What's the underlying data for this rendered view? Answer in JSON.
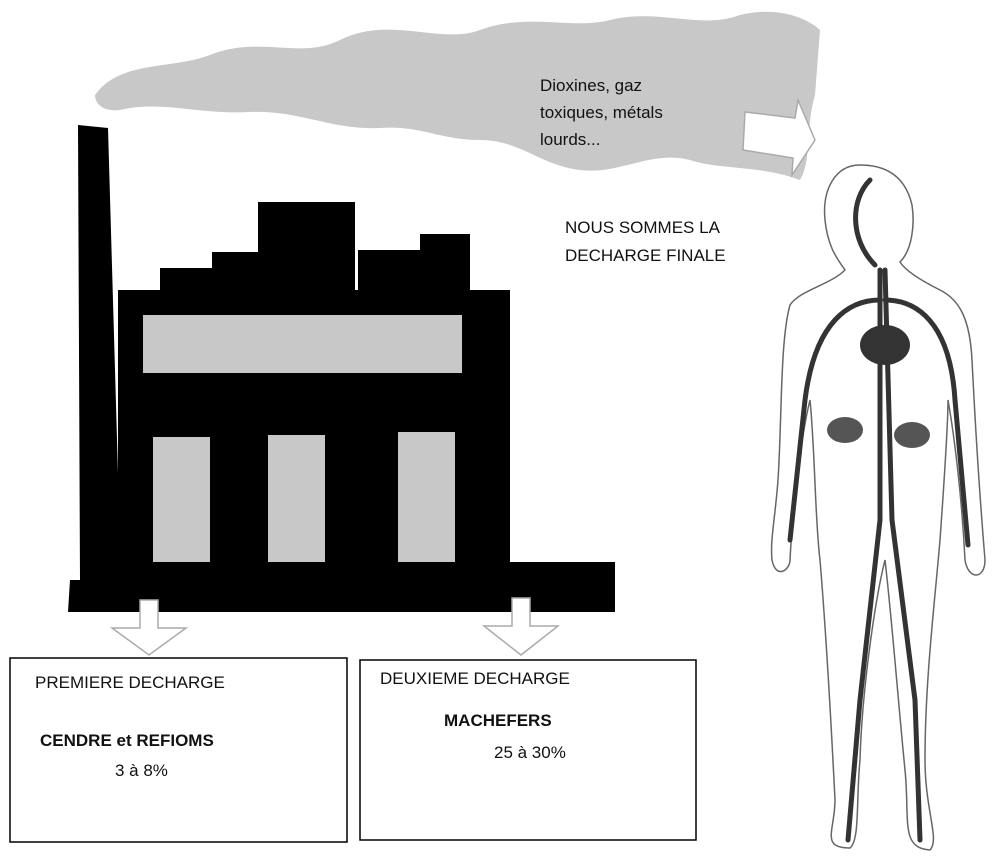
{
  "smoke": {
    "lines": [
      "Dioxines, gaz",
      "toxiques, métals",
      "lourds..."
    ]
  },
  "final": {
    "lines": [
      "NOUS SOMMES LA",
      "DECHARGE FINALE"
    ]
  },
  "box1": {
    "heading": "PREMIERE DECHARGE",
    "title": "CENDRE et REFIOMS",
    "share": "3 à 8%"
  },
  "box2": {
    "heading": "DEUXIEME DECHARGE",
    "title": "MACHEFERS",
    "share": "25 à 30%"
  }
}
